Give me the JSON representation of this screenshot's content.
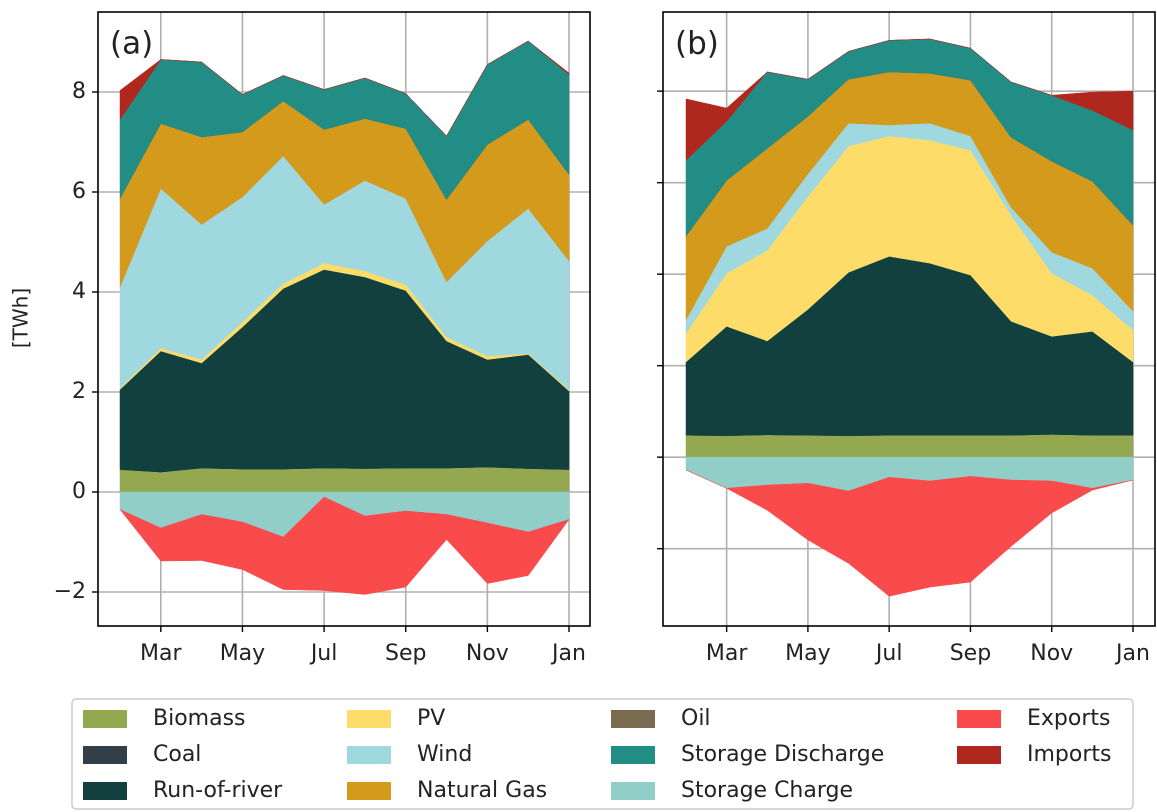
{
  "chart_data": [
    {
      "type": "area",
      "title": "(a)",
      "ylabel": "[TWh]",
      "categories": [
        null,
        "Mar",
        null,
        "May",
        null,
        "Jul",
        null,
        "Sep",
        null,
        "Nov",
        null,
        "Jan"
      ],
      "ylim": [
        -2.68,
        9.6
      ],
      "yticks": [
        {
          "value": -2,
          "label": "−2"
        },
        0,
        2,
        4,
        6,
        8
      ],
      "show_ytick_labels": true,
      "grid": true,
      "series": [
        {
          "name": "Biomass",
          "color": "#93a84f",
          "values": [
            0.45,
            0.4,
            0.48,
            0.46,
            0.46,
            0.48,
            0.47,
            0.48,
            0.48,
            0.5,
            0.47,
            0.45
          ]
        },
        {
          "name": "Coal",
          "color": "#333f48",
          "values": [
            0,
            0,
            0,
            0,
            0,
            0,
            0,
            0,
            0,
            0,
            0,
            0
          ]
        },
        {
          "name": "Run-of-river",
          "color": "#12403f",
          "values": [
            1.6,
            2.42,
            2.1,
            2.84,
            3.61,
            3.97,
            3.83,
            3.55,
            2.54,
            2.15,
            2.28,
            1.57
          ]
        },
        {
          "name": "PV",
          "color": "#fddc6a",
          "values": [
            0.02,
            0.06,
            0.07,
            0.1,
            0.1,
            0.13,
            0.12,
            0.12,
            0.08,
            0.07,
            0.02,
            0.03
          ]
        },
        {
          "name": "Wind",
          "color": "#a0d8e0",
          "values": [
            2.03,
            3.19,
            2.7,
            2.5,
            2.55,
            1.17,
            1.81,
            1.72,
            1.1,
            2.3,
            2.9,
            2.57
          ]
        },
        {
          "name": "Natural Gas",
          "color": "#d39a1c",
          "values": [
            1.77,
            1.3,
            1.75,
            1.3,
            1.1,
            1.5,
            1.24,
            1.4,
            1.65,
            1.93,
            1.78,
            1.73
          ]
        },
        {
          "name": "Oil",
          "color": "#7a6a50",
          "values": [
            0,
            0,
            0,
            0,
            0,
            0,
            0,
            0,
            0,
            0,
            0,
            0
          ]
        },
        {
          "name": "Storage Discharge",
          "color": "#218d85",
          "values": [
            1.58,
            1.28,
            1.5,
            0.75,
            0.51,
            0.8,
            0.81,
            0.7,
            1.27,
            1.6,
            1.57,
            2.0
          ]
        },
        {
          "name": "Storage Charge",
          "color": "#91cec7",
          "values": [
            -0.35,
            -0.72,
            -0.45,
            -0.6,
            -0.9,
            -0.1,
            -0.48,
            -0.38,
            -0.45,
            -0.62,
            -0.8,
            -0.55
          ]
        },
        {
          "name": "Exports",
          "color": "#f94a4c",
          "values": [
            0,
            -0.66,
            -0.92,
            -0.95,
            -1.05,
            -1.87,
            -1.57,
            -1.52,
            -0.5,
            -1.21,
            -0.87,
            0
          ]
        },
        {
          "name": "Imports",
          "color": "#b0271e",
          "values": [
            0.58,
            0,
            0,
            0,
            0,
            0,
            0,
            0,
            0,
            0,
            0,
            0.03
          ]
        }
      ]
    },
    {
      "type": "area",
      "title": "(b)",
      "categories": [
        null,
        "Mar",
        null,
        "May",
        null,
        "Jul",
        null,
        "Sep",
        null,
        "Nov",
        null,
        "Jan"
      ],
      "ylim": [
        -3.69,
        9.73
      ],
      "yticks": [
        -2,
        0,
        2,
        4,
        6,
        8
      ],
      "show_ytick_labels": false,
      "grid": true,
      "series": [
        {
          "values": [
            0.48,
            0.47,
            0.49,
            0.48,
            0.47,
            0.48,
            0.48,
            0.48,
            0.48,
            0.5,
            0.48,
            0.48
          ]
        },
        {
          "values": [
            0,
            0,
            0,
            0,
            0,
            0,
            0,
            0,
            0,
            0,
            0,
            0
          ]
        },
        {
          "values": [
            1.6,
            2.39,
            2.05,
            2.75,
            3.57,
            3.91,
            3.76,
            3.5,
            2.49,
            2.14,
            2.27,
            1.6
          ]
        },
        {
          "values": [
            0.63,
            1.16,
            1.98,
            2.47,
            2.76,
            2.63,
            2.69,
            2.73,
            2.32,
            1.38,
            0.79,
            0.7
          ]
        },
        {
          "values": [
            0.29,
            0.59,
            0.48,
            0.49,
            0.5,
            0.24,
            0.37,
            0.31,
            0.17,
            0.46,
            0.59,
            0.41
          ]
        },
        {
          "values": [
            1.83,
            1.44,
            1.75,
            1.26,
            0.96,
            1.16,
            1.09,
            1.22,
            1.53,
            1.99,
            1.9,
            1.88
          ]
        },
        {
          "values": [
            0,
            0,
            0,
            0,
            0,
            0,
            0,
            0,
            0,
            0,
            0,
            0
          ]
        },
        {
          "values": [
            1.66,
            1.29,
            1.67,
            0.81,
            0.61,
            0.69,
            0.75,
            0.7,
            1.21,
            1.44,
            1.55,
            2.08
          ]
        },
        {
          "values": [
            -0.28,
            -0.68,
            -0.61,
            -0.57,
            -0.74,
            -0.44,
            -0.52,
            -0.42,
            -0.5,
            -0.52,
            -0.68,
            -0.5
          ]
        },
        {
          "values": [
            0,
            0,
            -0.55,
            -1.24,
            -1.58,
            -2.6,
            -2.32,
            -2.31,
            -1.45,
            -0.7,
            -0.04,
            0
          ]
        },
        {
          "values": [
            1.34,
            0.29,
            0,
            0,
            0,
            0,
            0,
            0,
            0,
            0,
            0.4,
            0.85
          ]
        }
      ]
    }
  ]
}
